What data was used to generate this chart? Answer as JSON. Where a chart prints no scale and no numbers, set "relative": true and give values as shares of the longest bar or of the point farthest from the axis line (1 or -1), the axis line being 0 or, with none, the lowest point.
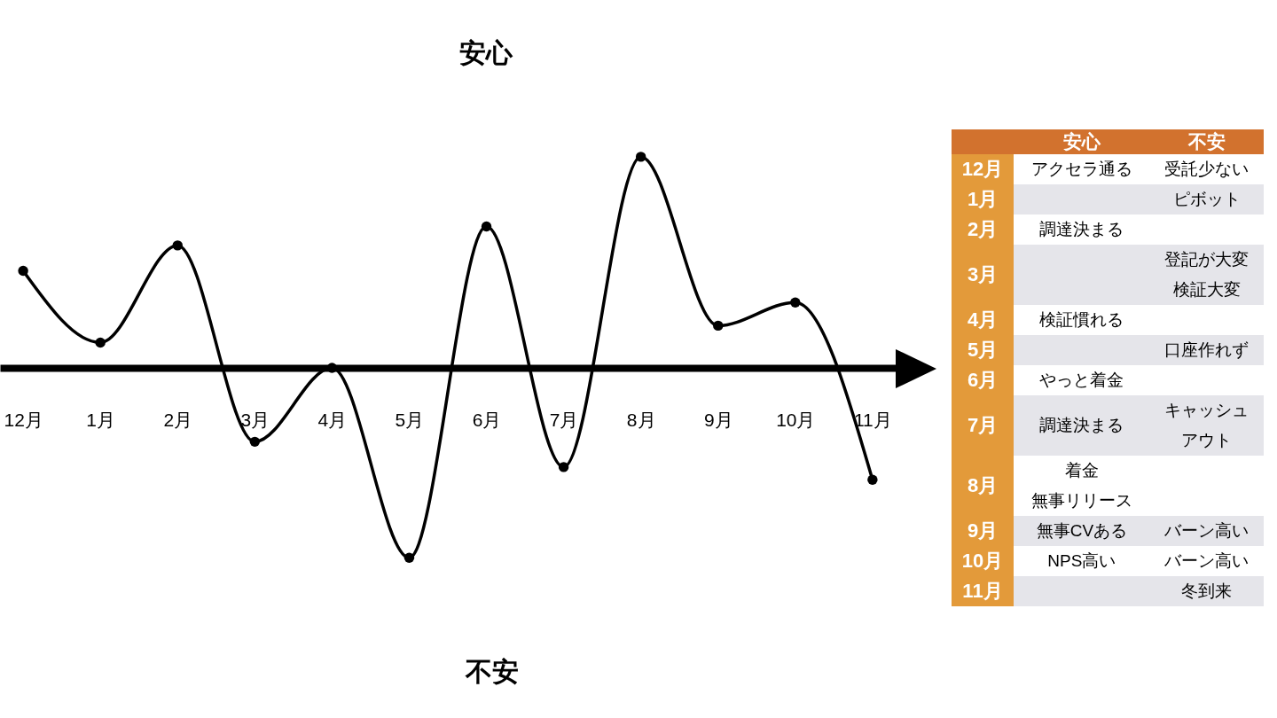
{
  "chart_data": [
    {
      "type": "line",
      "relative": true,
      "categories": [
        "12月",
        "1月",
        "2月",
        "3月",
        "4月",
        "5月",
        "6月",
        "7月",
        "8月",
        "9月",
        "10月",
        "11月"
      ],
      "series": [
        {
          "color": "#000000",
          "values": [
            0.46,
            0.12,
            0.58,
            -0.35,
            0,
            -0.9,
            0.67,
            -0.47,
            1,
            0.2,
            0.31,
            -0.53
          ]
        }
      ],
      "marker": "circle",
      "line_style": "solid",
      "annotations": [
        "安心",
        "不安"
      ]
    },
    {
      "type": "other",
      "categories": [
        "安心",
        "不安"
      ],
      "y_categories": [
        "12月",
        "1月",
        "2月",
        "3月",
        "4月",
        "5月",
        "6月",
        "7月",
        "8月",
        "9月",
        "10月",
        "11月"
      ],
      "cell_labels": [
        [
          "アクセラ通る",
          "受託少ない"
        ],
        [
          null,
          "ピボット"
        ],
        [
          "調達決まる",
          null
        ],
        [
          null,
          [
            "登記が大変",
            "検証大変"
          ]
        ],
        [
          "検証慣れる",
          null
        ],
        [
          null,
          "口座作れず"
        ],
        [
          "やっと着金",
          null
        ],
        [
          "調達決まる",
          [
            "キャッシュ",
            "アウト"
          ]
        ],
        [
          [
            "着金",
            "無事リリース"
          ],
          null
        ],
        [
          "無事CVある",
          "バーン高い"
        ],
        [
          "NPS高い",
          "バーン高い"
        ],
        [
          null,
          "冬到来"
        ]
      ]
    }
  ]
}
